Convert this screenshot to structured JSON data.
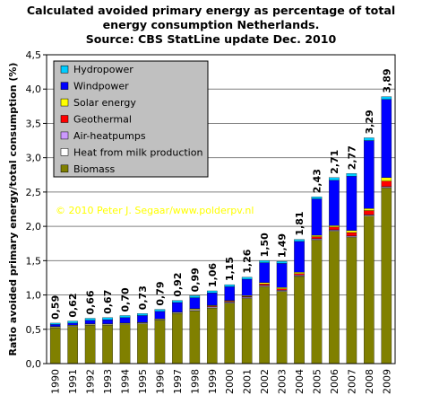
{
  "chart_data": {
    "type": "bar",
    "stacked": true,
    "title_lines": [
      "Calculated avoided primary energy as percentage of total",
      "energy consumption Netherlands.",
      "Source: CBS StatLine update Dec. 2010"
    ],
    "ylabel": "Ratio avoided primary energy/total consumption (%)",
    "ylim": [
      0,
      4.5
    ],
    "yticks": [
      "0,0",
      "0,5",
      "1,0",
      "1,5",
      "2,0",
      "2,5",
      "3,0",
      "3,5",
      "4,0",
      "4,5"
    ],
    "grid": true,
    "legend_position": "top-left",
    "copyright": "© 2010 Peter J. Segaar/www.polderpv.nl",
    "categories": [
      "1990",
      "1991",
      "1992",
      "1993",
      "1994",
      "1995",
      "1996",
      "1997",
      "1998",
      "1999",
      "2000",
      "2001",
      "2002",
      "2003",
      "2004",
      "2005",
      "2006",
      "2007",
      "2008",
      "2009"
    ],
    "totals": [
      0.59,
      0.62,
      0.66,
      0.67,
      0.7,
      0.73,
      0.79,
      0.92,
      0.99,
      1.06,
      1.15,
      1.26,
      1.5,
      1.49,
      1.81,
      2.43,
      2.71,
      2.77,
      3.29,
      3.89
    ],
    "total_labels": [
      "0,59",
      "0,62",
      "0,66",
      "0,67",
      "0,70",
      "0,73",
      "0,79",
      "0,92",
      "0,99",
      "1,06",
      "1,15",
      "1,26",
      "1,50",
      "1,49",
      "1,81",
      "2,43",
      "2,71",
      "2,77",
      "3,29",
      "3,89"
    ],
    "series": [
      {
        "name": "Biomass",
        "color": "#808000",
        "values": [
          0.52,
          0.54,
          0.56,
          0.56,
          0.57,
          0.58,
          0.63,
          0.73,
          0.77,
          0.81,
          0.88,
          0.95,
          1.12,
          1.05,
          1.27,
          1.8,
          1.93,
          1.84,
          2.15,
          2.56
        ]
      },
      {
        "name": "Heat from milk production",
        "color": "#ffffff",
        "values": [
          0.01,
          0.01,
          0.01,
          0.01,
          0.01,
          0.01,
          0.01,
          0.01,
          0.01,
          0.01,
          0.01,
          0.01,
          0.01,
          0.01,
          0.01,
          0.01,
          0.01,
          0.01,
          0.01,
          0.01
        ]
      },
      {
        "name": "Air-heatpumps",
        "color": "#cc99ff",
        "values": [
          0.0,
          0.0,
          0.0,
          0.0,
          0.0,
          0.0,
          0.0,
          0.0,
          0.01,
          0.01,
          0.01,
          0.01,
          0.01,
          0.01,
          0.01,
          0.01,
          0.01,
          0.01,
          0.01,
          0.01
        ]
      },
      {
        "name": "Geothermal",
        "color": "#ff0000",
        "values": [
          0.0,
          0.0,
          0.0,
          0.0,
          0.0,
          0.0,
          0.0,
          0.0,
          0.0,
          0.01,
          0.01,
          0.01,
          0.02,
          0.02,
          0.02,
          0.03,
          0.04,
          0.05,
          0.06,
          0.08
        ]
      },
      {
        "name": "Solar energy",
        "color": "#ffff00",
        "values": [
          0.01,
          0.01,
          0.01,
          0.01,
          0.01,
          0.01,
          0.01,
          0.01,
          0.01,
          0.01,
          0.01,
          0.01,
          0.02,
          0.02,
          0.02,
          0.02,
          0.02,
          0.03,
          0.03,
          0.05
        ]
      },
      {
        "name": "Windpower",
        "color": "#0000ff",
        "values": [
          0.03,
          0.03,
          0.05,
          0.06,
          0.08,
          0.1,
          0.11,
          0.14,
          0.16,
          0.18,
          0.2,
          0.24,
          0.29,
          0.35,
          0.45,
          0.53,
          0.66,
          0.79,
          0.99,
          1.14
        ]
      },
      {
        "name": "Hydropower",
        "color": "#00ccff",
        "values": [
          0.02,
          0.03,
          0.03,
          0.03,
          0.03,
          0.03,
          0.03,
          0.03,
          0.03,
          0.03,
          0.03,
          0.03,
          0.03,
          0.03,
          0.03,
          0.03,
          0.04,
          0.04,
          0.04,
          0.04
        ]
      }
    ]
  }
}
